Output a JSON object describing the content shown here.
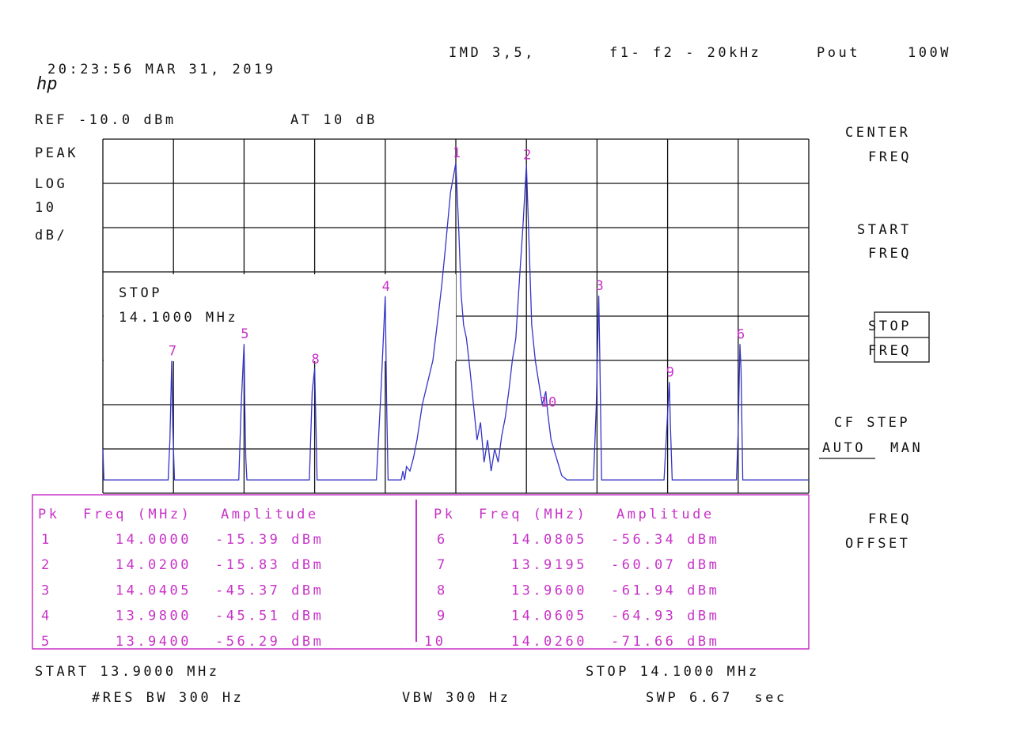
{
  "header": {
    "logo": "hp",
    "timestamp": "20:23:56 MAR 31, 2019",
    "title": "IMD 3,5,",
    "spacing": "f1- f2 - 20kHz",
    "pout_label": "Pout",
    "pout": "100W"
  },
  "settings": {
    "ref": "REF -10.0 dBm",
    "atten": "AT 10 dB",
    "detector": "PEAK",
    "scale": [
      "LOG",
      "10",
      "dB/"
    ],
    "active_function": [
      "STOP",
      "14.1000 MHz"
    ]
  },
  "chart_data": {
    "type": "line",
    "x": [
      13.9,
      13.9003,
      13.9185,
      13.919,
      13.9195,
      13.9198,
      13.92,
      13.9203,
      13.9385,
      13.9392,
      13.94,
      13.9402,
      13.9405,
      13.9408,
      13.9585,
      13.9593,
      13.96,
      13.9603,
      13.9607,
      13.9775,
      13.9788,
      13.98,
      13.9804,
      13.9808,
      13.9845,
      13.985,
      13.9855,
      13.986,
      13.987,
      13.988,
      13.989,
      13.9905,
      13.992,
      13.9935,
      13.995,
      13.996,
      13.997,
      13.9985,
      14.0,
      14.0008,
      14.0015,
      14.0022,
      14.003,
      14.004,
      14.005,
      14.006,
      14.007,
      14.008,
      14.009,
      14.01,
      14.011,
      14.012,
      14.013,
      14.014,
      14.015,
      14.016,
      14.017,
      14.018,
      14.019,
      14.02,
      14.0208,
      14.0215,
      14.0225,
      14.0235,
      14.0245,
      14.0255,
      14.026,
      14.027,
      14.0285,
      14.03,
      14.0315,
      14.039,
      14.0398,
      14.0405,
      14.0408,
      14.0413,
      14.059,
      14.0598,
      14.0605,
      14.0608,
      14.0613,
      14.0795,
      14.08,
      14.0805,
      14.0808,
      14.0813,
      14.1
    ],
    "series": [
      {
        "color": "#3434c8",
        "values": [
          -80,
          -87,
          -87,
          -78,
          -60.1,
          -75,
          -80,
          -87,
          -87,
          -70,
          -56.3,
          -70,
          -82,
          -87,
          -87,
          -67,
          -61.9,
          -72,
          -87,
          -87,
          -67,
          -45.5,
          -70,
          -87,
          -87,
          -85,
          -87,
          -84,
          -85,
          -82,
          -78,
          -70,
          -65,
          -60,
          -50,
          -43,
          -35,
          -22,
          -15.4,
          -30,
          -45,
          -52,
          -55,
          -62,
          -70,
          -78,
          -74,
          -83,
          -78,
          -85,
          -80,
          -83,
          -77,
          -73,
          -67,
          -60,
          -55,
          -42,
          -30,
          -15.8,
          -35,
          -52,
          -60,
          -65,
          -70,
          -67,
          -71.7,
          -78,
          -82,
          -86,
          -87,
          -87,
          -70,
          -45.4,
          -60,
          -87,
          -87,
          -75,
          -64.9,
          -75,
          -87,
          -87,
          -76,
          -56.3,
          -62,
          -87,
          -87
        ]
      }
    ],
    "xlim": [
      13.9,
      14.1
    ],
    "ylim": [
      -90,
      -10
    ],
    "xticks": [
      13.9,
      13.92,
      13.94,
      13.96,
      13.98,
      14.0,
      14.02,
      14.04,
      14.06,
      14.08,
      14.1
    ],
    "yticks": [
      -90,
      -80,
      -70,
      -60,
      -50,
      -40,
      -30,
      -20,
      -10
    ],
    "grid": true
  },
  "table": {
    "columns": [
      "Pk",
      "Freq (MHz)",
      "Amplitude"
    ],
    "rows": [
      [
        "1",
        "14.0000",
        "-15.39 dBm"
      ],
      [
        "2",
        "14.0200",
        "-15.83 dBm"
      ],
      [
        "3",
        "14.0405",
        "-45.37 dBm"
      ],
      [
        "4",
        "13.9800",
        "-45.51 dBm"
      ],
      [
        "5",
        "13.9400",
        "-56.29 dBm"
      ],
      [
        "6",
        "14.0805",
        "-56.34 dBm"
      ],
      [
        "7",
        "13.9195",
        "-60.07 dBm"
      ],
      [
        "8",
        "13.9600",
        "-61.94 dBm"
      ],
      [
        "9",
        "14.0605",
        "-64.93 dBm"
      ],
      [
        "10",
        "14.0260",
        "-71.66 dBm"
      ]
    ]
  },
  "softkeys": {
    "center": [
      "CENTER",
      "FREQ"
    ],
    "start": [
      "START",
      "FREQ"
    ],
    "stop": [
      "STOP",
      "FREQ"
    ],
    "cf_step": "CF STEP",
    "auto": "AUTO",
    "man": "MAN",
    "offset": [
      "FREQ",
      "OFFSET"
    ]
  },
  "footer": {
    "start": "START 13.9000 MHz",
    "stop": "STOP 14.1000 MHz",
    "rbw": "#RES BW 300 Hz",
    "vbw": "VBW 300 Hz",
    "sweep": "SWP 6.67  sec"
  }
}
